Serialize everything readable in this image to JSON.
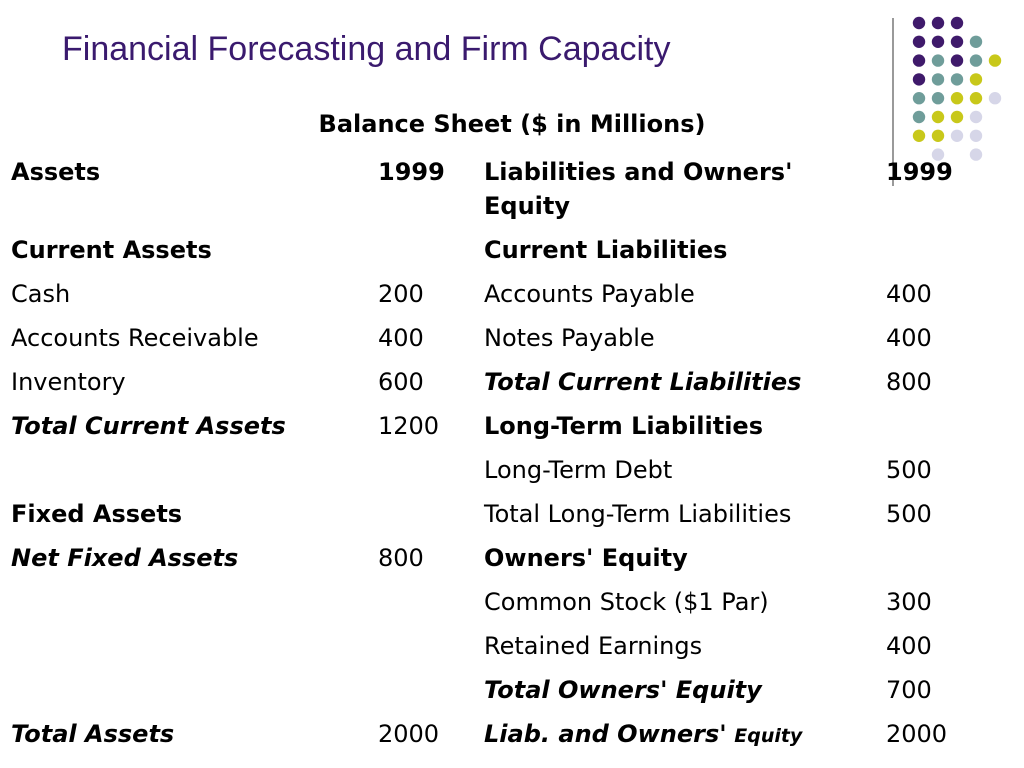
{
  "slide": {
    "title": "Financial Forecasting and Firm Capacity"
  },
  "table": {
    "heading": "Balance Sheet ($ in Millions)",
    "rows": [
      {
        "a": "Assets",
        "a_year": "1999",
        "l": "Liabilities and Owners' Equity",
        "l_year": "1999"
      },
      {
        "a": "Current Assets",
        "a_val": "",
        "l": "Current Liabilities",
        "l_val": ""
      },
      {
        "a": "Cash",
        "a_val": "200",
        "l": "Accounts Payable",
        "l_val": "400"
      },
      {
        "a": "Accounts Receivable",
        "a_val": "400",
        "l": "Notes Payable",
        "l_val": "400"
      },
      {
        "a": "Inventory",
        "a_val": "600",
        "l": "Total Current Liabilities",
        "l_val": "800"
      },
      {
        "a": "Total Current Assets",
        "a_val": "1200",
        "l": "Long-Term Liabilities",
        "l_val": ""
      },
      {
        "a": "",
        "a_val": "",
        "l": "Long-Term Debt",
        "l_val": "500"
      },
      {
        "a": "Fixed Assets",
        "a_val": "",
        "l": "Total Long-Term Liabilities",
        "l_val": "500"
      },
      {
        "a": "Net Fixed Assets",
        "a_val": "800",
        "l": "Owners' Equity",
        "l_val": ""
      },
      {
        "a": "",
        "a_val": "",
        "l": "Common Stock ($1 Par)",
        "l_val": "300"
      },
      {
        "a": "",
        "a_val": "",
        "l": "Retained Earnings",
        "l_val": "400"
      },
      {
        "a": "",
        "a_val": "",
        "l": "Total Owners' Equity",
        "l_val": "700"
      },
      {
        "a": "Total Assets",
        "a_val": "2000",
        "l": "Liab. and Owners'",
        "l_suffix": "Equity",
        "l_val": "2000"
      }
    ]
  },
  "decoration": {
    "dot_colors": {
      "purple": "#3f1a6b",
      "teal": "#6f9d9a",
      "olive": "#c8c81a",
      "lavender": "#d6d6e8"
    }
  }
}
